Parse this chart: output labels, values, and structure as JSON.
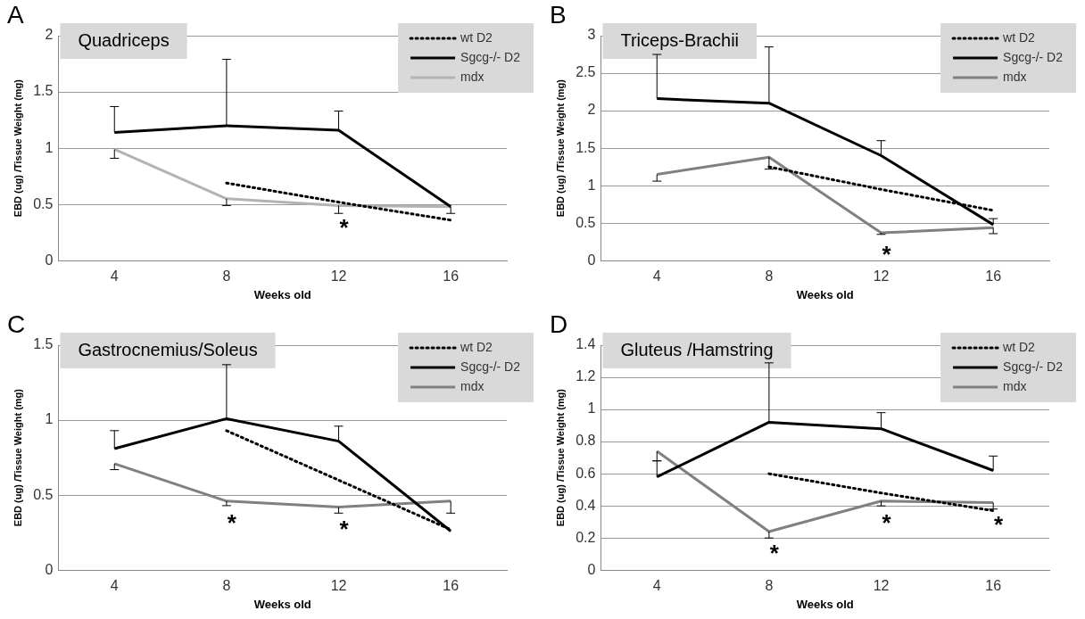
{
  "chart_data": [
    {
      "type": "line",
      "title": "Quadriceps",
      "xlabel": "Weeks old",
      "ylabel": "EBD (ug) /Tissue Weight (mg)",
      "categories": [
        "4",
        "8",
        "12",
        "16"
      ],
      "ylim": [
        0,
        2
      ],
      "yticks": [
        0,
        0.5,
        1,
        1.5,
        2
      ],
      "grid": "y",
      "legend": "top right",
      "marker": "none",
      "series": [
        {
          "name": "wt D2",
          "color": "#000000",
          "line_style": "dotted",
          "values": [
            null,
            0.69,
            0.52,
            0.36
          ]
        },
        {
          "name": "Sgcg-/- D2",
          "color": "#000000",
          "line_style": "solid",
          "values": [
            1.14,
            1.2,
            1.16,
            0.48
          ],
          "errors": [
            [
              1.14,
              1.37
            ],
            [
              1.2,
              1.79
            ],
            [
              1.16,
              1.33
            ],
            null
          ]
        },
        {
          "name": "mdx",
          "color": "#b3b3b3",
          "line_style": "solid",
          "values": [
            0.99,
            0.55,
            0.49,
            0.48
          ],
          "errors": [
            [
              0.91,
              0.99
            ],
            [
              0.49,
              0.55
            ],
            [
              0.42,
              0.49
            ],
            [
              0.42,
              0.48
            ]
          ]
        }
      ],
      "annotations": [
        "A",
        {
          "text": "*",
          "x": "12",
          "y": 0.49
        }
      ]
    },
    {
      "type": "line",
      "title": "Triceps-Brachii",
      "xlabel": "Weeks old",
      "ylabel": "EBD (ug) /Tissue Weight (mg)",
      "categories": [
        "4",
        "8",
        "12",
        "16"
      ],
      "ylim": [
        0,
        3
      ],
      "yticks": [
        0,
        0.5,
        1,
        1.5,
        2,
        2.5,
        3
      ],
      "grid": "y",
      "legend": "top right",
      "marker": "none",
      "series": [
        {
          "name": "wt D2",
          "color": "#000000",
          "line_style": "dotted",
          "values": [
            null,
            1.25,
            0.95,
            0.67
          ]
        },
        {
          "name": "Sgcg-/- D2",
          "color": "#000000",
          "line_style": "solid",
          "values": [
            2.16,
            2.1,
            1.4,
            0.48
          ],
          "errors": [
            [
              2.16,
              2.75
            ],
            [
              2.1,
              2.85
            ],
            [
              1.4,
              1.6
            ],
            [
              0.48,
              0.56
            ]
          ]
        },
        {
          "name": "mdx",
          "color": "#808080",
          "line_style": "solid",
          "values": [
            1.15,
            1.38,
            0.37,
            0.44
          ],
          "errors": [
            [
              1.06,
              1.15
            ],
            [
              1.22,
              1.38
            ],
            [
              0.35,
              0.37
            ],
            [
              0.36,
              0.44
            ]
          ]
        }
      ],
      "annotations": [
        "B",
        {
          "text": "*",
          "x": "12",
          "y": 0.37
        }
      ]
    },
    {
      "type": "line",
      "title": "Gastrocnemius/Soleus",
      "xlabel": "Weeks old",
      "ylabel": "EBD (ug) /Tissue Weight (mg)",
      "categories": [
        "4",
        "8",
        "12",
        "16"
      ],
      "ylim": [
        0,
        1.5
      ],
      "yticks": [
        0,
        0.5,
        1,
        1.5
      ],
      "grid": "y",
      "legend": "top right",
      "marker": "none",
      "series": [
        {
          "name": "wt D2",
          "color": "#000000",
          "line_style": "dotted",
          "values": [
            null,
            0.93,
            0.6,
            0.27
          ]
        },
        {
          "name": "Sgcg-/- D2",
          "color": "#000000",
          "line_style": "solid",
          "values": [
            0.81,
            1.01,
            0.86,
            0.26
          ],
          "errors": [
            [
              0.81,
              0.93
            ],
            [
              1.01,
              1.37
            ],
            [
              0.86,
              0.96
            ],
            null
          ]
        },
        {
          "name": "mdx",
          "color": "#808080",
          "line_style": "solid",
          "values": [
            0.71,
            0.46,
            0.42,
            0.46
          ],
          "errors": [
            [
              0.67,
              0.71
            ],
            [
              0.43,
              0.46
            ],
            [
              0.38,
              0.42
            ],
            [
              0.38,
              0.46
            ]
          ]
        }
      ],
      "annotations": [
        "C",
        {
          "text": "*",
          "x": "8",
          "y": 0.46
        },
        {
          "text": "*",
          "x": "12",
          "y": 0.42
        }
      ]
    },
    {
      "type": "line",
      "title": "Gluteus /Hamstring",
      "xlabel": "Weeks old",
      "ylabel": "EBD (ug) /Tissue Weight (mg)",
      "categories": [
        "4",
        "8",
        "12",
        "16"
      ],
      "ylim": [
        0,
        1.4
      ],
      "yticks": [
        0,
        0.2,
        0.4,
        0.6,
        0.8,
        1,
        1.2,
        1.4
      ],
      "grid": "y",
      "legend": "top right",
      "marker": "none",
      "series": [
        {
          "name": "wt D2",
          "color": "#000000",
          "line_style": "dotted",
          "values": [
            null,
            0.6,
            0.48,
            0.37
          ]
        },
        {
          "name": "Sgcg-/- D2",
          "color": "#000000",
          "line_style": "solid",
          "values": [
            0.58,
            0.92,
            0.88,
            0.62
          ],
          "errors": [
            [
              0.58,
              0.68
            ],
            [
              0.92,
              1.29
            ],
            [
              0.88,
              0.98
            ],
            [
              0.62,
              0.71
            ]
          ]
        },
        {
          "name": "mdx",
          "color": "#808080",
          "line_style": "solid",
          "values": [
            0.74,
            0.24,
            0.43,
            0.42
          ],
          "errors": [
            [
              0.68,
              0.74
            ],
            [
              0.2,
              0.24
            ],
            [
              0.4,
              0.43
            ],
            [
              0.38,
              0.42
            ]
          ]
        }
      ],
      "annotations": [
        "D",
        {
          "text": "*",
          "x": "8",
          "y": 0.24
        },
        {
          "text": "*",
          "x": "12",
          "y": 0.43
        },
        {
          "text": "*",
          "x": "16",
          "y": 0.42
        }
      ]
    }
  ]
}
